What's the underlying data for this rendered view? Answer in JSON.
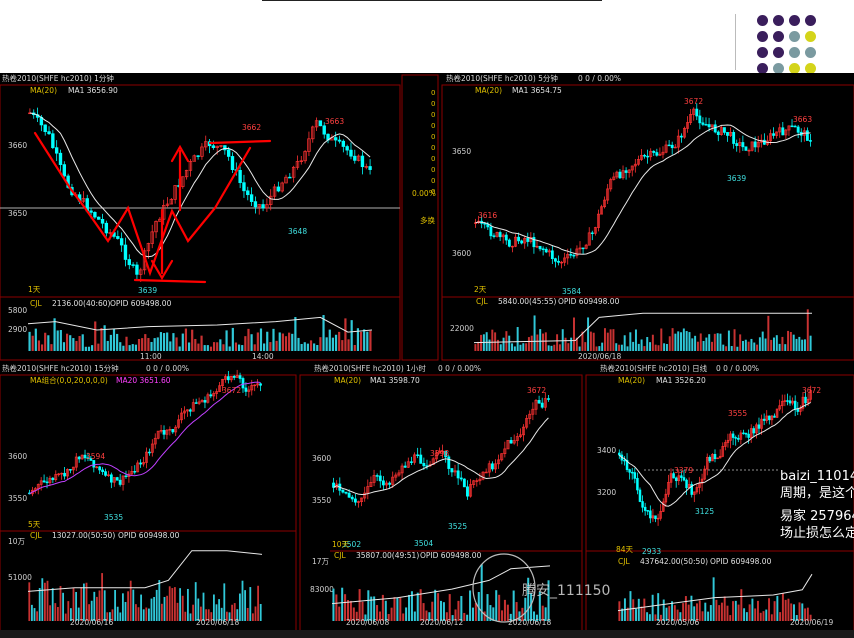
{
  "slide": {
    "dot_colors": [
      "#3a1e5c",
      "#7a9aa0",
      "#d4d41a"
    ]
  },
  "panels": {
    "p1": {
      "header": "热卷2010(SHFE hc2010) 1分钟",
      "ma": "MA(20)",
      "ma_value": "MA1 3656.90",
      "price_ticks": [
        "3660",
        "3650"
      ],
      "hi_label": "3663",
      "hi2_label": "3662",
      "lo_label": "3639",
      "lo2_label": "3648",
      "period": "1天",
      "vol_title": "CJL",
      "vol_value": "2136.00(40:60)",
      "opid": "OPID 609498.00",
      "vol_ticks": [
        "5800",
        "2900"
      ],
      "time_labels": [
        "11:00",
        "14:00"
      ]
    },
    "side": {
      "zeros": [
        "0",
        "0",
        "0",
        "0",
        "0",
        "0",
        "0",
        "0",
        "0",
        "0"
      ],
      "pct": "0.00%",
      "label": "多换"
    },
    "p2": {
      "header": "热卷2010(SHFE hc2010) 5分钟",
      "stats": "0   0 / 0.00%",
      "ma": "MA(20)",
      "ma_value": "MA1 3654.75",
      "price_ticks": [
        "3650",
        "3600"
      ],
      "hi_label": "3672",
      "hi2_label": "3663",
      "left_label": "3616",
      "mid_label": "3639",
      "lo_label": "3584",
      "period": "2天",
      "vol_title": "CJL",
      "vol_value": "5840.00(45:55)",
      "opid": "OPID 609498.00",
      "vol_tick": "22000",
      "date": "2020/06/18"
    },
    "p3": {
      "header": "热卷2010(SHFE hc2010) 15分钟",
      "stats": "0   0 / 0.00%",
      "ma": "MA组合(0,0,20,0,0,0)",
      "ma_value": "MA20 3651.60",
      "price_ticks": [
        "3600",
        "3550"
      ],
      "hi_label": "3672",
      "mid_label": "3594",
      "lo_label": "3535",
      "period": "5天",
      "vol_title": "CJL",
      "vol_value": "13027.00(50:50)",
      "opid": "OPID 609498.00",
      "vol_ticks": [
        "10万",
        "51000"
      ],
      "dates": [
        "2020/06/16",
        "2020/06/18"
      ]
    },
    "p4": {
      "header": "热卷2010(SHFE hc2010) 1小时",
      "stats": "0   0 / 0.00%",
      "ma": "MA(20)",
      "ma_value": "MA1 3598.70",
      "price_ticks": [
        "3600",
        "3550"
      ],
      "hi_label": "3672",
      "mid_label": "3598",
      "lo_label": "3525",
      "lo2_label": "3504",
      "lo3_label": "3502",
      "period": "10天",
      "vol_title": "CJL",
      "vol_value": "35807.00(49:51)",
      "opid": "OPID 609498.00",
      "vol_ticks": [
        "17万",
        "83000"
      ],
      "dates": [
        "2020/06/08",
        "2020/06/12",
        "2020/06/18"
      ]
    },
    "p5": {
      "header": "热卷2010(SHFE hc2010) 日线",
      "stats": "0   0 / 0.00%",
      "ma": "MA(20)",
      "ma_value": "MA1 3526.20",
      "price_ticks": [
        "3400",
        "3200"
      ],
      "hi_label": "3672",
      "mid_label": "3555",
      "mid2_label": "3379",
      "lo_label": "3125",
      "lo2_label": "2933",
      "period": "84天",
      "vol_title": "CJL",
      "vol_value": "437642.00(50:50)",
      "opid": "OPID 609498.00",
      "dates": [
        "2020/05/06",
        "2020/06/19"
      ]
    }
  },
  "chat": {
    "line1": "baizi_11014",
    "line2": "周期，是这个",
    "line3": "易家 257964",
    "line4": "场止损怎么定"
  },
  "watermark": "腾安_111150",
  "colors": {
    "up": "#ff3232",
    "down": "#00ffff",
    "frame": "#8b0000",
    "annotation": "#ff0000"
  }
}
